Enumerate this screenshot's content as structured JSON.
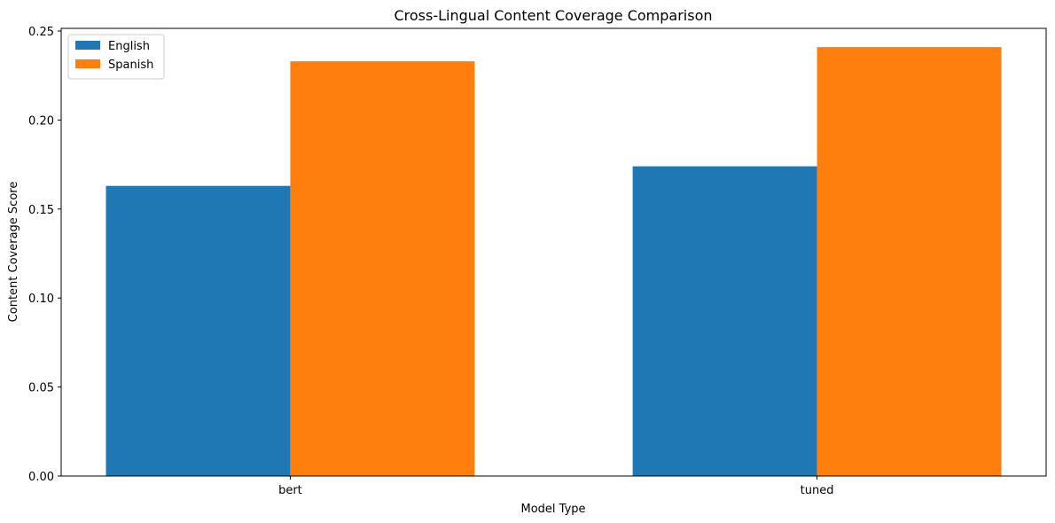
{
  "chart_data": {
    "type": "bar",
    "title": "Cross-Lingual Content Coverage Comparison",
    "xlabel": "Model Type",
    "ylabel": "Content Coverage Score",
    "categories": [
      "bert",
      "tuned"
    ],
    "series": [
      {
        "name": "English",
        "color": "#1f77b4",
        "values": [
          0.163,
          0.174
        ]
      },
      {
        "name": "Spanish",
        "color": "#ff7f0e",
        "values": [
          0.233,
          0.241
        ]
      }
    ],
    "ylim": [
      0,
      0.2515
    ],
    "yticks": [
      0.0,
      0.05,
      0.1,
      0.15,
      0.2,
      0.25
    ],
    "ytick_labels": [
      "0.00",
      "0.05",
      "0.10",
      "0.15",
      "0.20",
      "0.25"
    ],
    "grid": false,
    "legend_position": "top-left"
  }
}
